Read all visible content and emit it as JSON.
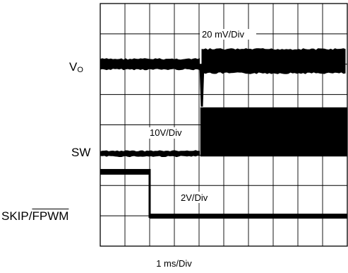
{
  "chart_data": {
    "type": "line",
    "title": "",
    "time_per_div": "1 ms/Div",
    "divisions": {
      "horizontal": 10,
      "vertical": 8
    },
    "grid": true,
    "channels": [
      {
        "name_prefix": "V",
        "name_sub": "O",
        "scale_label": "20 mV/Div",
        "trace": "flat, then a negative spike and a widened noisy band after the transition",
        "baseline_div": 2.0,
        "transition_div": 4.1,
        "spike_depth_div": 1.4,
        "band_before_div": 0.35,
        "band_after_div": 0.8
      },
      {
        "name": "SW",
        "scale_label": "10V/Div",
        "trace": "low, then switching (dense pulses) after the transition",
        "low_div": 4.95,
        "high_div": 3.75,
        "transition_div": 4.05
      },
      {
        "name_plain": "SKIP/",
        "name_overline": "FPWM",
        "scale_label": "2V/Div",
        "trace": "high, then falls low",
        "high_div": 5.55,
        "low_div": 7.0,
        "transition_div": 2.0
      }
    ]
  }
}
